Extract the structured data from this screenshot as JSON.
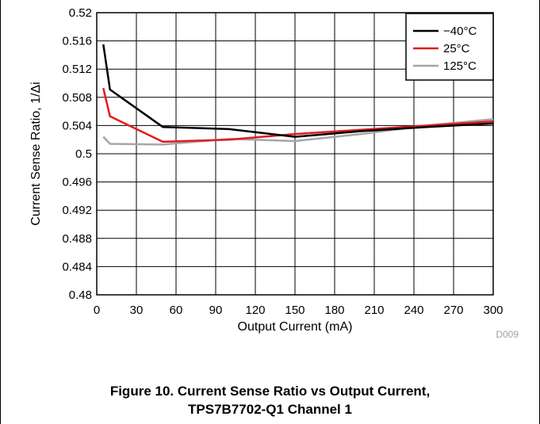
{
  "chart_data": {
    "type": "line",
    "title": "",
    "xlabel": "Output Current (mA)",
    "ylabel": "Current Sense Ratio, 1/Δi",
    "xlim": [
      0,
      300
    ],
    "ylim": [
      0.48,
      0.52
    ],
    "xticks": [
      0,
      30,
      60,
      90,
      120,
      150,
      180,
      210,
      240,
      270,
      300
    ],
    "yticks": [
      0.48,
      0.484,
      0.488,
      0.492,
      0.496,
      0.5,
      0.504,
      0.508,
      0.512,
      0.516,
      0.52
    ],
    "ytick_labels": [
      "0.48",
      "0.484",
      "0.488",
      "0.492",
      "0.496",
      "0.5",
      "0.504",
      "0.508",
      "0.512",
      "0.516",
      "0.52"
    ],
    "grid": true,
    "legend_position": "top-right",
    "series": [
      {
        "name": "−40°C",
        "color": "#000000",
        "x": [
          5,
          10,
          50,
          100,
          150,
          200,
          250,
          300
        ],
        "y": [
          0.5155,
          0.5091,
          0.5038,
          0.5035,
          0.5024,
          0.5032,
          0.5038,
          0.5043
        ]
      },
      {
        "name": "25°C",
        "color": "#e31a1c",
        "x": [
          5,
          10,
          50,
          100,
          150,
          200,
          250,
          300
        ],
        "y": [
          0.5093,
          0.5053,
          0.5017,
          0.502,
          0.5028,
          0.5034,
          0.504,
          0.5046
        ]
      },
      {
        "name": "125°C",
        "color": "#a6a6a6",
        "x": [
          5,
          10,
          50,
          100,
          150,
          200,
          250,
          300
        ],
        "y": [
          0.5024,
          0.5014,
          0.5013,
          0.5021,
          0.5018,
          0.5028,
          0.504,
          0.5049
        ]
      }
    ],
    "code": "D009"
  },
  "caption": {
    "line1": "Figure 10. Current Sense Ratio vs Output Current,",
    "line2": "TPS7B7702-Q1 Channel 1"
  }
}
